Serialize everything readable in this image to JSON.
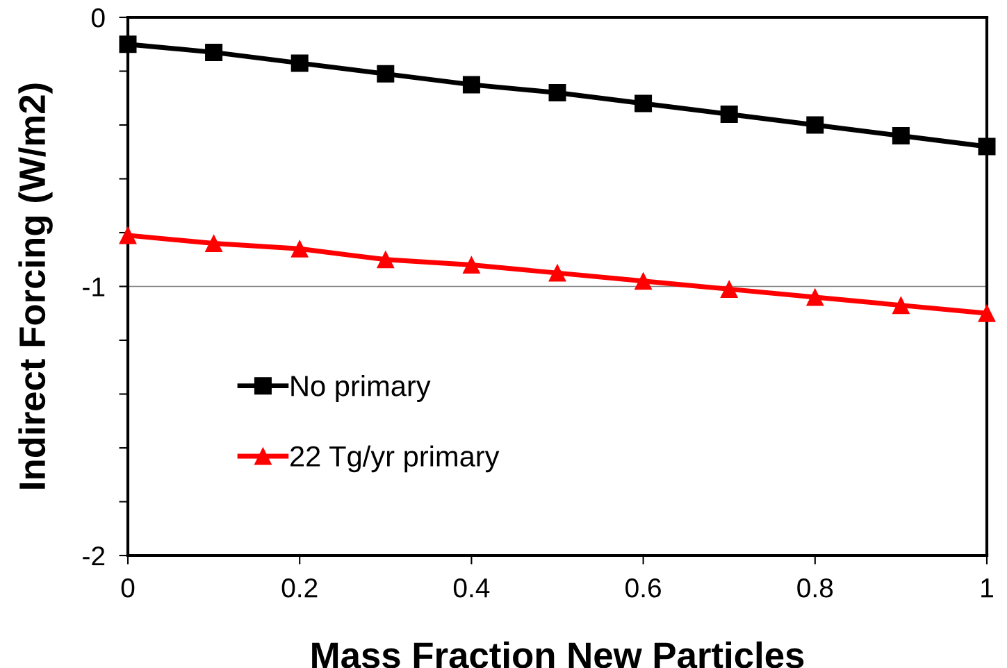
{
  "chart_data": {
    "type": "line",
    "xlabel": "Mass Fraction New Particles",
    "ylabel": "Indirect Forcing (W/m2)",
    "x": [
      0,
      0.1,
      0.2,
      0.3,
      0.4,
      0.5,
      0.6,
      0.7,
      0.8,
      0.9,
      1
    ],
    "series": [
      {
        "name": "No primary",
        "color": "#000000",
        "marker": "square",
        "values": [
          -0.1,
          -0.13,
          -0.17,
          -0.21,
          -0.25,
          -0.28,
          -0.32,
          -0.36,
          -0.4,
          -0.44,
          -0.48
        ]
      },
      {
        "name": "22 Tg/yr primary",
        "color": "#ff0000",
        "marker": "triangle",
        "values": [
          -0.81,
          -0.84,
          -0.86,
          -0.9,
          -0.92,
          -0.95,
          -0.98,
          -1.01,
          -1.04,
          -1.07,
          -1.1
        ]
      }
    ],
    "xlim": [
      0,
      1
    ],
    "xticks": [
      0,
      0.2,
      0.4,
      0.6,
      0.8,
      1
    ],
    "ylim": [
      -2,
      0
    ],
    "yticks": [
      {
        "value": -2,
        "label": "-2"
      },
      {
        "value": -1.8,
        "label": null
      },
      {
        "value": -1.6,
        "label": null
      },
      {
        "value": -1.4,
        "label": null
      },
      {
        "value": -1.2,
        "label": null
      },
      {
        "value": -1,
        "label": "-1"
      },
      {
        "value": -0.8,
        "label": null
      },
      {
        "value": -0.6,
        "label": null
      },
      {
        "value": -0.4,
        "label": null
      },
      {
        "value": -0.2,
        "label": null
      },
      {
        "value": 0,
        "label": "0"
      }
    ],
    "ref_lines": [
      {
        "axis": "y",
        "value": -1,
        "color": "#808080"
      }
    ],
    "grid": false,
    "legend": "left",
    "line_style": "solid"
  }
}
